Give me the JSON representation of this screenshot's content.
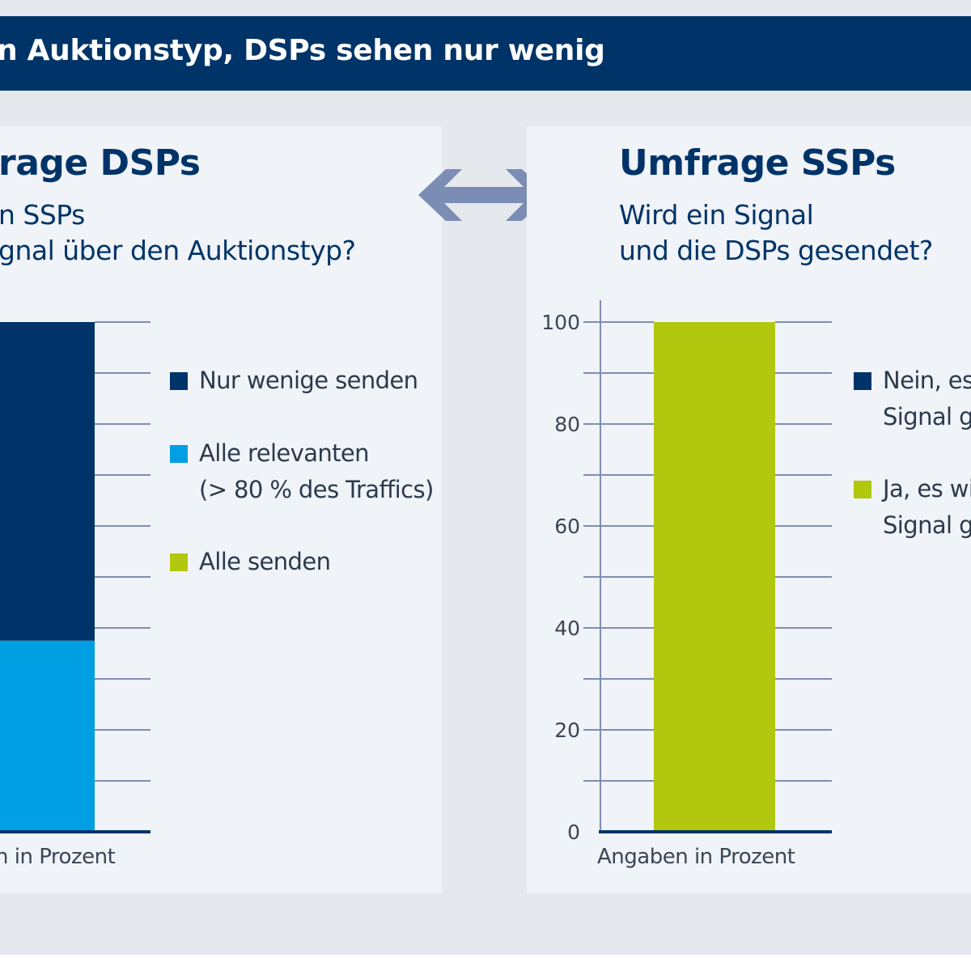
{
  "header": {
    "title": "n Auktionstyp, DSPs sehen nur wenig"
  },
  "colors": {
    "navy": "#003468",
    "cyan": "#009fe3",
    "lime": "#b1c80f",
    "arrow": "#7b8db5",
    "grid": "#7f8db0"
  },
  "panels": {
    "dsp": {
      "title": "rage DSPs",
      "subtitle_lines": [
        "n SSPs",
        "gnal über den Auktionstyp?"
      ],
      "unit_label": "n in Prozent",
      "legend": [
        {
          "lines": [
            "Nur wenige senden"
          ],
          "color": "#003468"
        },
        {
          "lines": [
            "Alle relevanten",
            "(> 80 % des Traffics)"
          ],
          "color": "#009fe3"
        },
        {
          "lines": [
            "Alle senden"
          ],
          "color": "#b1c80f"
        }
      ]
    },
    "ssp": {
      "title": "Umfrage SSPs",
      "subtitle_lines": [
        "Wird ein Signal",
        "und die DSPs gesendet?"
      ],
      "unit_label": "Angaben in Prozent",
      "legend": [
        {
          "lines": [
            "Nein, es",
            "Signal ge"
          ],
          "color": "#003468"
        },
        {
          "lines": [
            "Ja, es wi",
            "Signal ge"
          ],
          "color": "#b1c80f"
        }
      ]
    }
  },
  "chart_data": [
    {
      "type": "bar",
      "stacked": true,
      "categories": [
        ""
      ],
      "series": [
        {
          "name": "Alle senden",
          "values": [
            0
          ],
          "color": "#b1c80f"
        },
        {
          "name": "Alle relevanten (> 80 % des Traffics)",
          "values": [
            37.5
          ],
          "color": "#009fe3"
        },
        {
          "name": "Nur wenige senden",
          "values": [
            62.5
          ],
          "color": "#003468"
        }
      ],
      "ylim": [
        0,
        100
      ],
      "y_tick_step": 10,
      "legend": "right"
    },
    {
      "type": "bar",
      "stacked": true,
      "categories": [
        ""
      ],
      "series": [
        {
          "name": "Ja, es wi Signal ge",
          "values": [
            100
          ],
          "color": "#b1c80f"
        },
        {
          "name": "Nein, es Signal ge",
          "values": [
            0
          ],
          "color": "#003468"
        }
      ],
      "ylim": [
        0,
        100
      ],
      "y_tick_step": 10,
      "y_tick_labels": [
        "0",
        "20",
        "40",
        "60",
        "80",
        "100"
      ],
      "legend": "right"
    }
  ]
}
